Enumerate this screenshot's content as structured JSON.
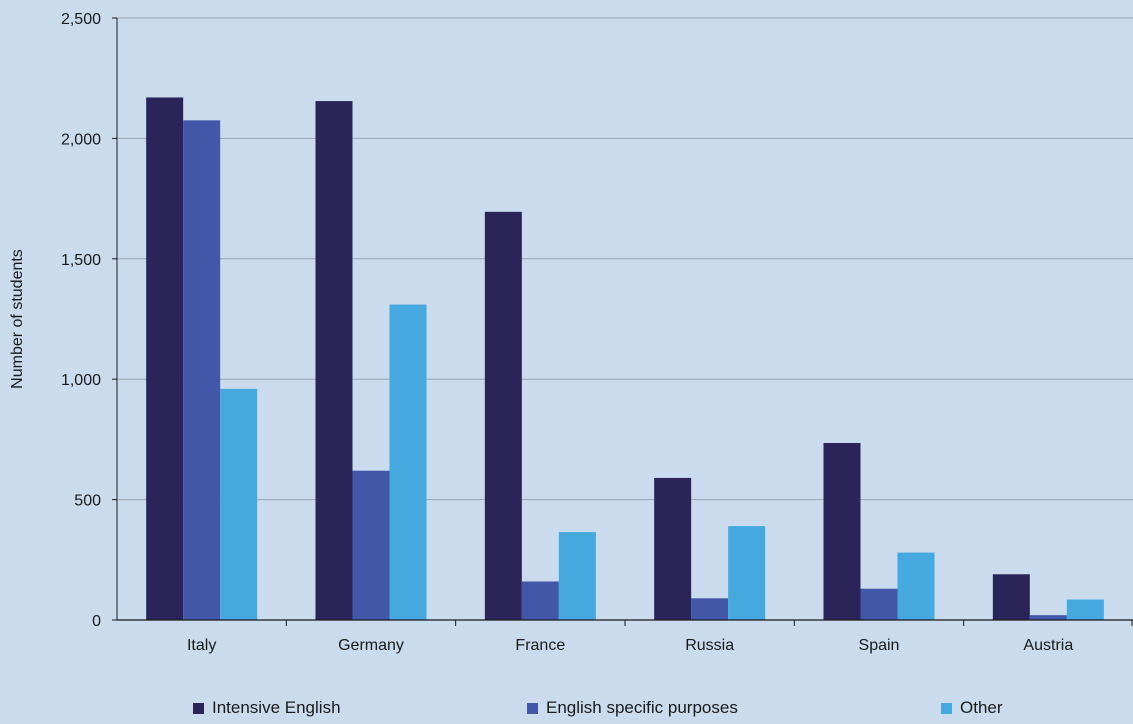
{
  "chart_data": {
    "type": "bar",
    "title": "",
    "xlabel": "",
    "ylabel": "Number of students",
    "ylim": [
      0,
      2500
    ],
    "yticks": [
      0,
      500,
      1000,
      1500,
      2000,
      2500
    ],
    "ytick_labels": [
      "0",
      "500",
      "1,000",
      "1,500",
      "2,000",
      "2,500"
    ],
    "grid": true,
    "legend_position": "bottom",
    "categories": [
      "Italy",
      "Germany",
      "France",
      "Russia",
      "Spain",
      "Austria"
    ],
    "series": [
      {
        "name": "Intensive English",
        "color": "#2b2459",
        "values": [
          2170,
          2155,
          1695,
          590,
          735,
          190
        ]
      },
      {
        "name": "English specific purposes",
        "color": "#4357a8",
        "values": [
          2075,
          620,
          160,
          90,
          130,
          20
        ]
      },
      {
        "name": "Other",
        "color": "#45a9df",
        "values": [
          960,
          1310,
          365,
          390,
          280,
          85
        ]
      }
    ]
  }
}
